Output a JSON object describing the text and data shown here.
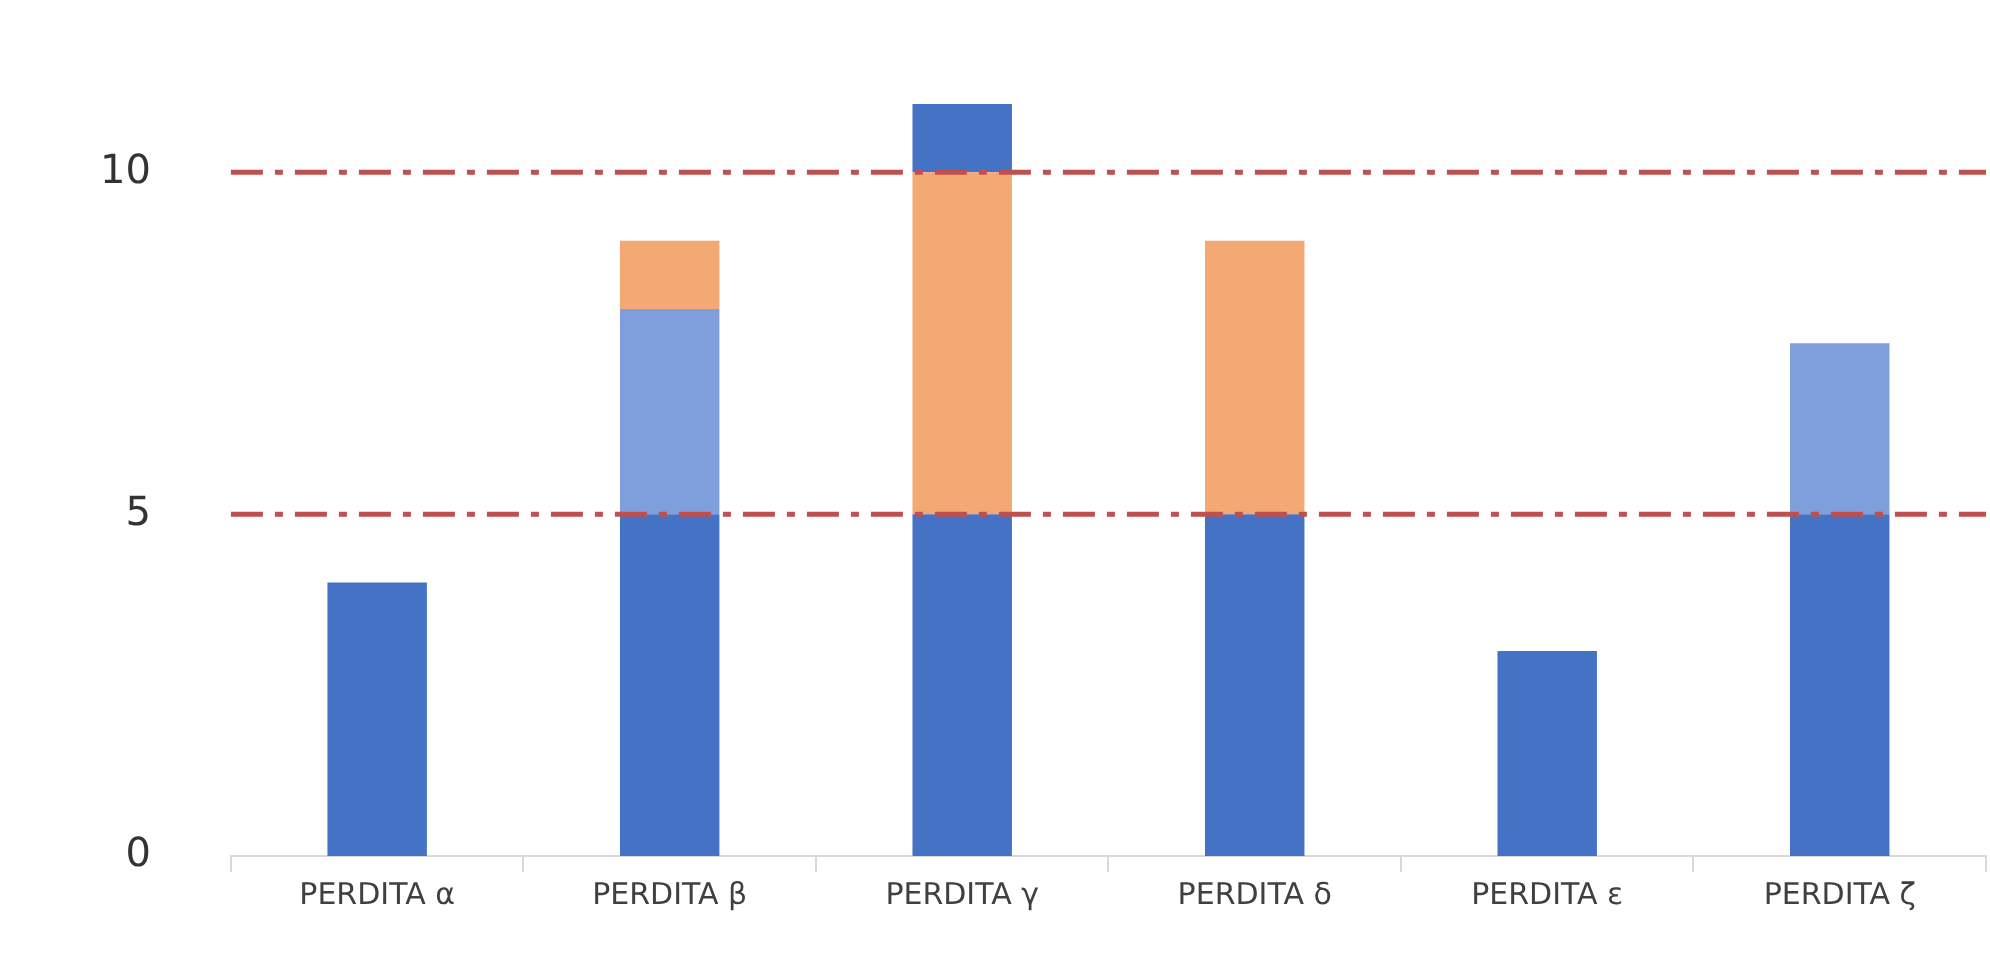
{
  "chart_data": {
    "type": "bar",
    "stacked": true,
    "categories": [
      "PERDITA α",
      "PERDITA β",
      "PERDITA γ",
      "PERDITA δ",
      "PERDITA ε",
      "PERDITA ζ"
    ],
    "series": [
      {
        "color": "#4472c4",
        "values": [
          4,
          5,
          5,
          5,
          3,
          5
        ]
      },
      {
        "color": "#7f9fdc",
        "values": [
          null,
          3,
          null,
          null,
          null,
          2.5
        ]
      },
      {
        "color": "#f4a873",
        "values": [
          null,
          1,
          5,
          4,
          null,
          null
        ]
      },
      {
        "color": "#4472c4",
        "values": [
          null,
          null,
          1,
          null,
          null,
          null
        ]
      }
    ],
    "ylim": [
      0,
      11
    ],
    "yticks": [
      0,
      5,
      10
    ],
    "legend": false,
    "ref_lines": [
      {
        "axis": "y",
        "value": 5,
        "color": "#c0504d",
        "line_style": "dashdot"
      },
      {
        "axis": "y",
        "value": 10,
        "color": "#c0504d",
        "line_style": "dashdot"
      }
    ]
  }
}
